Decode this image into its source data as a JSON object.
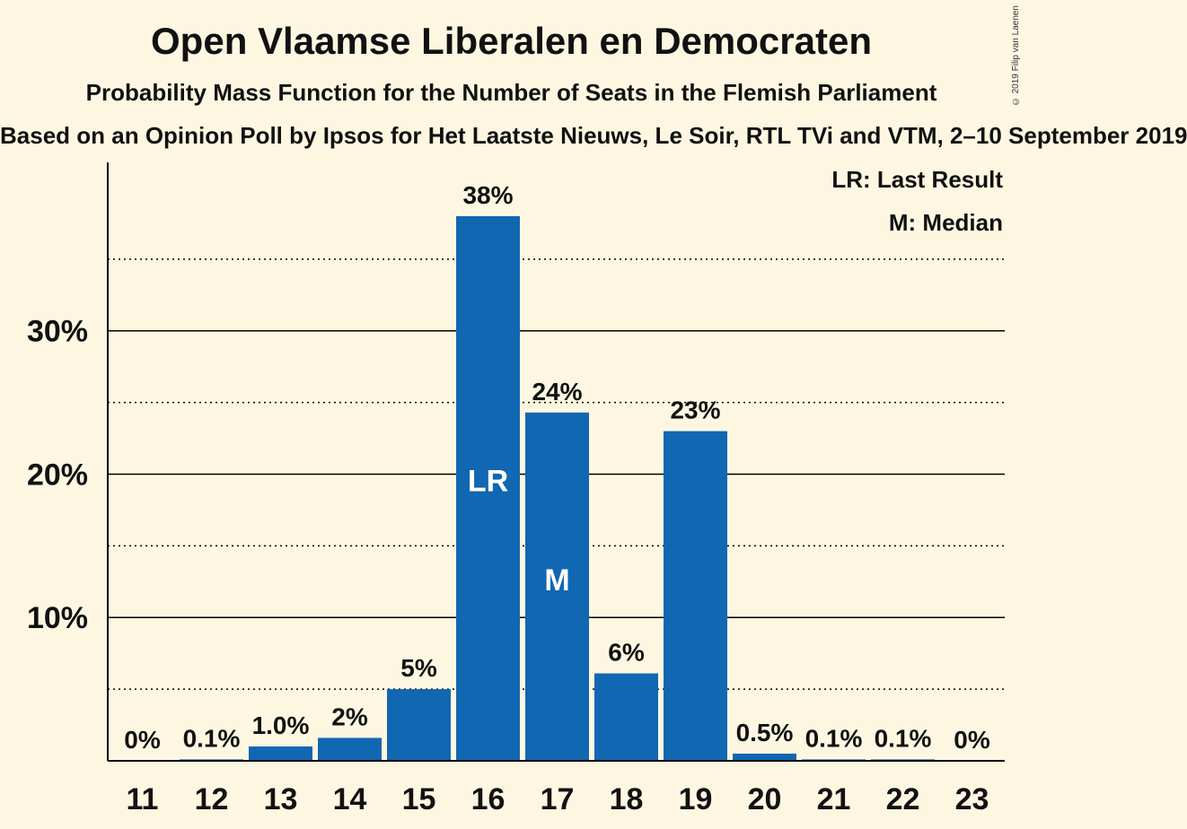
{
  "header": {
    "title": "Open Vlaamse Liberalen en Democraten",
    "subtitle": "Probability Mass Function for the Number of Seats in the Flemish Parliament",
    "source": "Based on an Opinion Poll by Ipsos for Het Laatste Nieuws, Le Soir, RTL TVi and VTM, 2–10 September 2019",
    "copyright": "© 2019 Filip van Laenen"
  },
  "legend": {
    "last_result": "LR: Last Result",
    "median": "M: Median"
  },
  "colors": {
    "bar": "#1167b1",
    "background": "#fdf7e2",
    "axis": "#000000"
  },
  "chart_data": {
    "type": "bar",
    "title": "Open Vlaamse Liberalen en Democraten",
    "xlabel": "",
    "ylabel": "",
    "categories": [
      "11",
      "12",
      "13",
      "14",
      "15",
      "16",
      "17",
      "18",
      "19",
      "20",
      "21",
      "22",
      "23"
    ],
    "values": [
      0,
      0.1,
      1.0,
      1.6,
      5.0,
      38.0,
      24.3,
      6.1,
      23.0,
      0.5,
      0.1,
      0.1,
      0
    ],
    "value_labels": [
      "0%",
      "0.1%",
      "1.0%",
      "2%",
      "5%",
      "38%",
      "24%",
      "6%",
      "23%",
      "0.5%",
      "0.1%",
      "0.1%",
      "0%"
    ],
    "bar_markers": {
      "16": "LR",
      "17": "M"
    },
    "ylim": [
      0,
      41.5
    ],
    "yticks": [
      10,
      20,
      30
    ],
    "ytick_labels": [
      "10%",
      "20%",
      "30%"
    ],
    "minor_gridlines": [
      5,
      15,
      25,
      35
    ],
    "grid": true,
    "legend_position": "top-right"
  }
}
